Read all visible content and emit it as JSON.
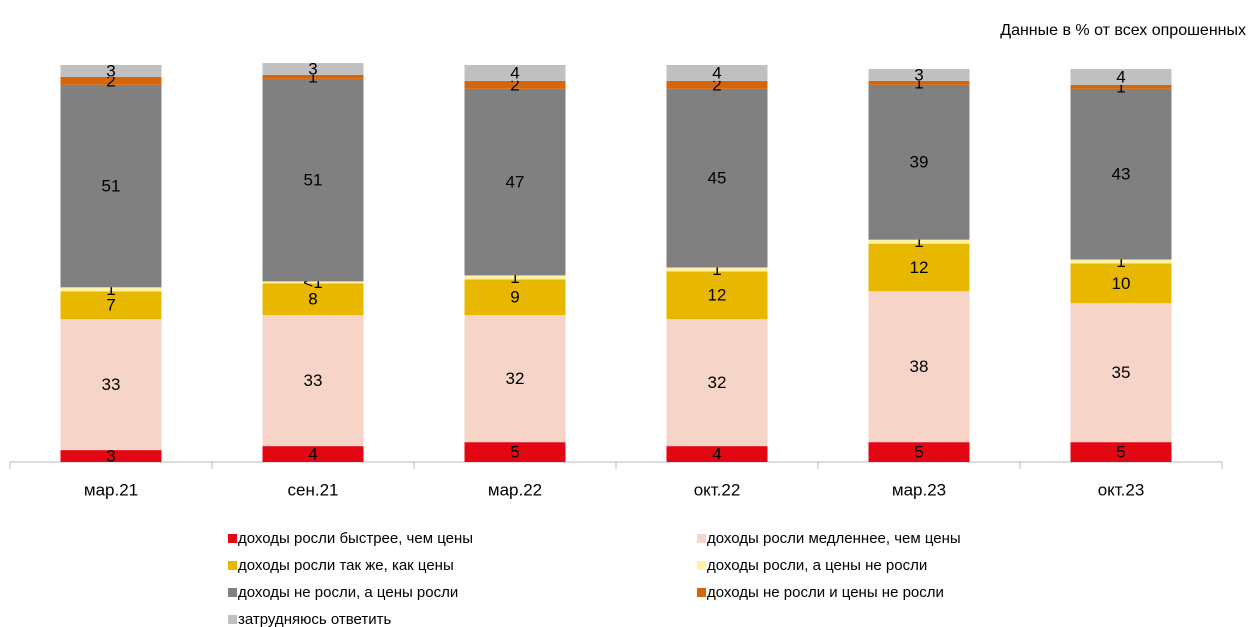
{
  "chart_data": {
    "type": "stacked_bar",
    "subtitle": "Данные в % от всех опрошенных",
    "categories": [
      "мар.21",
      "сен.21",
      "мар.22",
      "окт.22",
      "мар.23",
      "окт.23"
    ],
    "ylim": [
      0,
      100
    ],
    "series": [
      {
        "name": "доходы росли быстрее, чем цены",
        "color": "#e30613",
        "values": [
          3,
          4,
          5,
          4,
          5,
          5
        ]
      },
      {
        "name": "доходы росли медленнее, чем цены",
        "color": "#f6d5c8",
        "values": [
          33,
          33,
          32,
          32,
          38,
          35
        ]
      },
      {
        "name": "доходы росли так же, как цены",
        "color": "#e8b800",
        "values": [
          7,
          8,
          9,
          12,
          12,
          10
        ]
      },
      {
        "name": "доходы росли, а цены не росли",
        "color": "#fff3a3",
        "values": [
          1,
          0.5,
          1,
          1,
          1,
          1
        ],
        "value_labels": [
          "1",
          "<1",
          "1",
          "1",
          "1",
          "1"
        ]
      },
      {
        "name": "доходы не росли, а цены росли",
        "color": "#808080",
        "values": [
          51,
          51,
          47,
          45,
          39,
          43
        ]
      },
      {
        "name": "доходы не росли и цены не росли",
        "color": "#d4650a",
        "values": [
          2,
          1,
          2,
          2,
          1,
          1
        ]
      },
      {
        "name": "затрудняюсь ответить",
        "color": "#c0c0c0",
        "values": [
          3,
          3,
          4,
          4,
          3,
          4
        ]
      }
    ]
  }
}
